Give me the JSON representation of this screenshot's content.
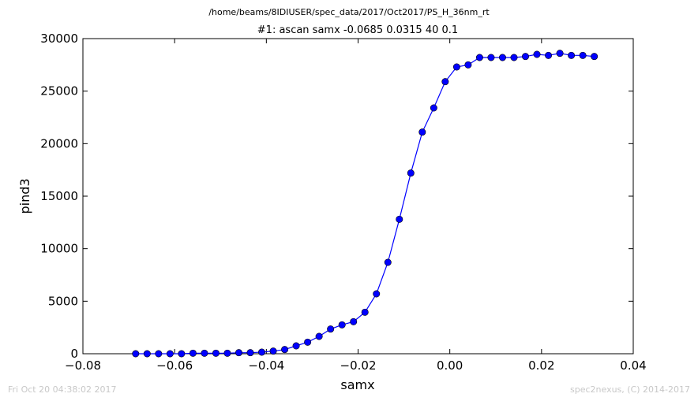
{
  "header": {
    "file_path": "/home/beams/8IDIUSER/spec_data/2017/Oct2017/PS_H_36nm_rt"
  },
  "footer": {
    "timestamp": "Fri Oct 20 04:38:02 2017",
    "credit": "spec2nexus, (C) 2014-2017"
  },
  "chart_data": {
    "type": "line",
    "title": "#1: ascan  samx -0.0685 0.0315  40 0.1",
    "xlabel": "samx",
    "ylabel": "pind3",
    "xlim": [
      -0.08,
      0.04
    ],
    "ylim": [
      0,
      30000
    ],
    "xticks": [
      -0.08,
      -0.06,
      -0.04,
      -0.02,
      0.0,
      0.02,
      0.04
    ],
    "xtick_labels": [
      "−0.08",
      "−0.06",
      "−0.04",
      "−0.02",
      "0.00",
      "0.02",
      "0.04"
    ],
    "yticks": [
      0,
      5000,
      10000,
      15000,
      20000,
      25000,
      30000
    ],
    "ytick_labels": [
      "0",
      "5000",
      "10000",
      "15000",
      "20000",
      "25000",
      "30000"
    ],
    "grid": false,
    "series": [
      {
        "color": "#0000ff",
        "marker": "circle",
        "x": [
          -0.0685,
          -0.066,
          -0.0635,
          -0.061,
          -0.0585,
          -0.056,
          -0.0535,
          -0.051,
          -0.0485,
          -0.046,
          -0.0435,
          -0.041,
          -0.0385,
          -0.036,
          -0.0335,
          -0.031,
          -0.0285,
          -0.026,
          -0.0235,
          -0.021,
          -0.0185,
          -0.016,
          -0.0135,
          -0.011,
          -0.0085,
          -0.006,
          -0.0035,
          -0.001,
          0.0015,
          0.004,
          0.0065,
          0.009,
          0.0115,
          0.014,
          0.0165,
          0.019,
          0.0215,
          0.024,
          0.0265,
          0.029,
          0.0315
        ],
        "y": [
          0,
          0,
          0,
          0,
          0,
          50,
          50,
          50,
          50,
          100,
          100,
          150,
          250,
          400,
          750,
          1100,
          1650,
          2350,
          2750,
          3050,
          3950,
          5700,
          8700,
          12800,
          17200,
          21100,
          23400,
          25900,
          27300,
          27500,
          28200,
          28200,
          28200,
          28200,
          28300,
          28500,
          28400,
          28600,
          28400,
          28400,
          28300
        ]
      }
    ]
  }
}
